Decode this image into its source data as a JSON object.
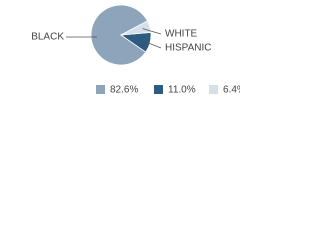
{
  "chart_data": {
    "type": "pie",
    "categories": [
      "BLACK",
      "HISPANIC",
      "WHITE"
    ],
    "values": [
      82.6,
      11.0,
      6.4
    ],
    "value_labels": [
      "82.6%",
      "11.0%",
      "6.4%"
    ],
    "colors": [
      "#8ea4ba",
      "#2e5b82",
      "#d6e0e9"
    ]
  }
}
